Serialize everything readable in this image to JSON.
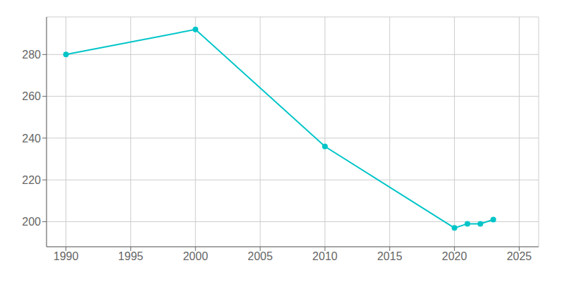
{
  "chart_data": {
    "type": "line",
    "x": [
      1990,
      2000,
      2010,
      2020,
      2021,
      2022,
      2023
    ],
    "values": [
      280,
      292,
      236,
      197,
      199,
      199,
      201
    ],
    "color": "#00c5c8",
    "marker": "circle",
    "xlim": [
      1988.5,
      2026.5
    ],
    "ylim": [
      188,
      298
    ],
    "xticks": [
      1990,
      1995,
      2000,
      2005,
      2010,
      2015,
      2020,
      2025
    ],
    "yticks": [
      200,
      220,
      240,
      260,
      280
    ],
    "grid": true
  }
}
